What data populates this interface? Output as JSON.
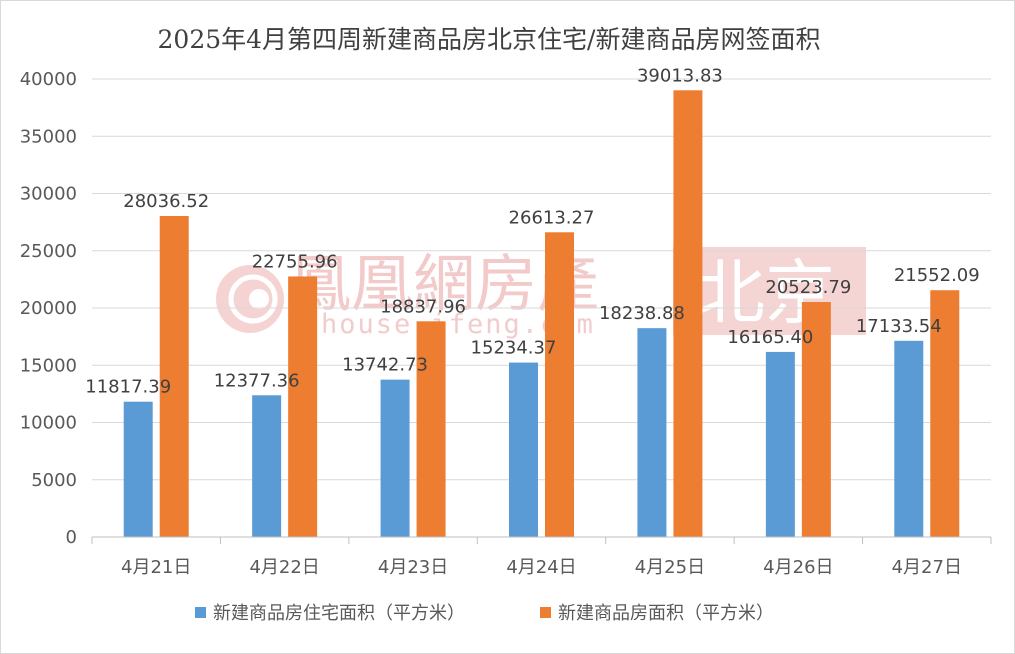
{
  "chart_data": {
    "type": "bar",
    "title": "2025年4月第四周新建商品房北京住宅/新建商品房网签面积",
    "categories": [
      "4月21日",
      "4月22日",
      "4月23日",
      "4月24日",
      "4月25日",
      "4月26日",
      "4月27日"
    ],
    "series": [
      {
        "name": "新建商品房住宅面积（平方米）",
        "color": "#5b9bd5",
        "values": [
          11817.39,
          12377.36,
          13742.73,
          15234.37,
          18238.88,
          16165.4,
          17133.54
        ],
        "labels": [
          "11817.39",
          "12377.36",
          "13742.73",
          "15234.37",
          "18238.88",
          "16165.40",
          "17133.54"
        ]
      },
      {
        "name": "新建商品房面积（平方米）",
        "color": "#ed7d31",
        "values": [
          28036.52,
          22755.96,
          18837.96,
          26613.27,
          39013.83,
          20523.79,
          21552.09
        ],
        "labels": [
          "28036.52",
          "22755.96",
          "18837.96",
          "26613.27",
          "39013.83",
          "20523.79",
          "21552.09"
        ]
      }
    ],
    "ylim": [
      0,
      40000
    ],
    "yticks": [
      0,
      5000,
      10000,
      15000,
      20000,
      25000,
      30000,
      35000,
      40000
    ],
    "grid": true,
    "legend": "bottom"
  },
  "watermark": {
    "brand": "鳳凰網房產",
    "site": "house.ifeng.com",
    "city": "北京",
    "color": "#e95a5a"
  }
}
